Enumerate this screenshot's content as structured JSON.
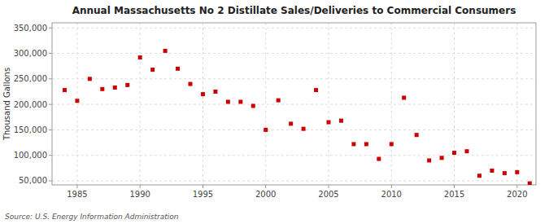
{
  "chart_data": {
    "type": "scatter",
    "title": "Annual Massachusetts No 2 Distillate Sales/Deliveries to Commercial Consumers",
    "ylabel": "Thousand Gallons",
    "annotations": [
      "Source: U.S. Energy Information Administration"
    ],
    "color": "#cc0000",
    "marker": "square",
    "grid": true,
    "xlim": [
      1983.0,
      2021.5
    ],
    "ylim": [
      42000,
      360000
    ],
    "xticks": [
      1985,
      1990,
      1995,
      2000,
      2005,
      2010,
      2015,
      2020
    ],
    "yticks": [
      {
        "value": 50000,
        "label": "50,000"
      },
      {
        "value": 100000,
        "label": "100,000"
      },
      {
        "value": 150000,
        "label": "150,000"
      },
      {
        "value": 200000,
        "label": "200,000"
      },
      {
        "value": 250000,
        "label": "250,000"
      },
      {
        "value": 300000,
        "label": "300,000"
      },
      {
        "value": 350000,
        "label": "350,000"
      }
    ],
    "x": [
      1984,
      1985,
      1986,
      1987,
      1988,
      1989,
      1990,
      1991,
      1992,
      1993,
      1994,
      1995,
      1996,
      1997,
      1998,
      1999,
      2000,
      2001,
      2002,
      2003,
      2004,
      2005,
      2006,
      2007,
      2008,
      2009,
      2010,
      2011,
      2012,
      2013,
      2014,
      2015,
      2016,
      2017,
      2018,
      2019,
      2020,
      2021
    ],
    "values": [
      228000,
      207000,
      250000,
      230000,
      233000,
      238000,
      292000,
      268000,
      305000,
      270000,
      240000,
      220000,
      225000,
      205000,
      205000,
      197000,
      150000,
      208000,
      162000,
      152000,
      228000,
      165000,
      168000,
      122000,
      122000,
      93000,
      122000,
      213000,
      140000,
      90000,
      95000,
      105000,
      108000,
      60000,
      70000,
      65000,
      67000,
      45000
    ]
  }
}
